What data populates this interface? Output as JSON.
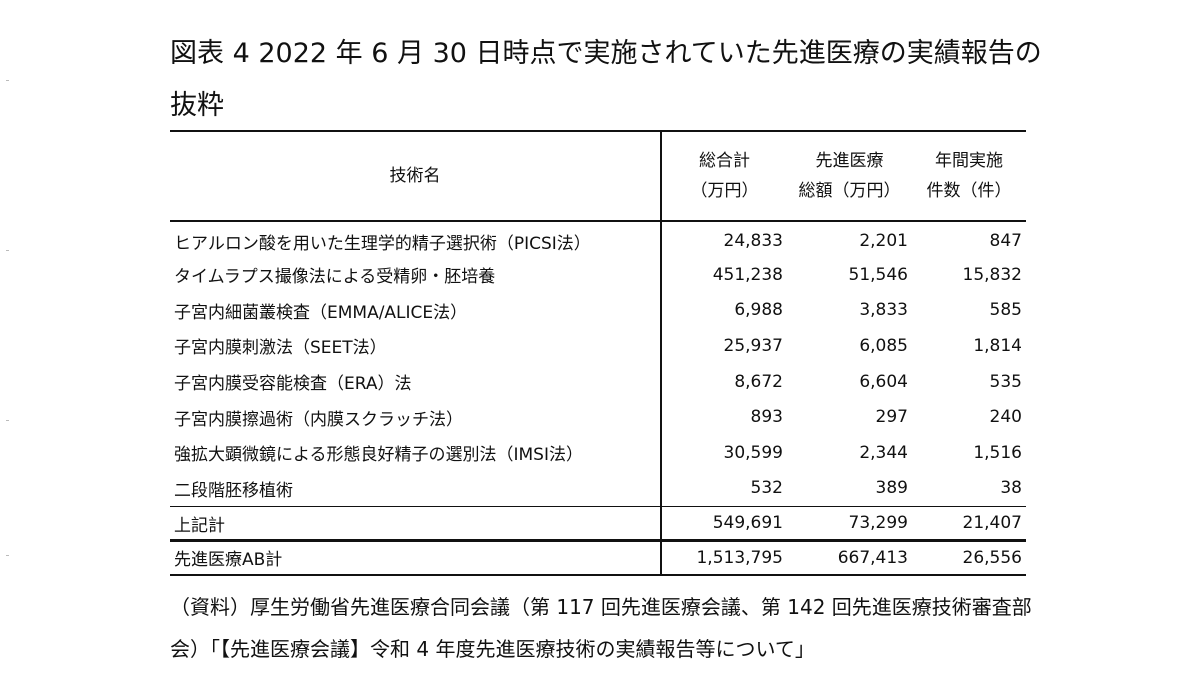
{
  "title": "図表 4 2022 年 6 月 30 日時点で実施されていた先進医療の実績報告の抜粋",
  "table": {
    "headers": {
      "name": "技術名",
      "total_line1": "総合計",
      "total_line2": "（万円）",
      "adv_line1": "先進医療",
      "adv_line2": "総額（万円）",
      "cases_line1": "年間実施",
      "cases_line2": "件数（件）"
    },
    "rows": [
      {
        "name": "ヒアルロン酸を用いた生理学的精子選択術（PICSI法）",
        "total": "24,833",
        "advanced": "2,201",
        "cases": "847"
      },
      {
        "name": "タイムラプス撮像法による受精卵・胚培養",
        "total": "451,238",
        "advanced": "51,546",
        "cases": "15,832"
      },
      {
        "name": "子宮内細菌叢検査（EMMA/ALICE法）",
        "total": "6,988",
        "advanced": "3,833",
        "cases": "585"
      },
      {
        "name": "子宮内膜刺激法（SEET法）",
        "total": "25,937",
        "advanced": "6,085",
        "cases": "1,814"
      },
      {
        "name": "子宮内膜受容能検査（ERA）法",
        "total": "8,672",
        "advanced": "6,604",
        "cases": "535"
      },
      {
        "name": "子宮内膜擦過術（内膜スクラッチ法）",
        "total": "893",
        "advanced": "297",
        "cases": "240"
      },
      {
        "name": "強拡大顕微鏡による形態良好精子の選別法（IMSI法）",
        "total": "30,599",
        "advanced": "2,344",
        "cases": "1,516"
      },
      {
        "name": "二段階胚移植術",
        "total": "532",
        "advanced": "389",
        "cases": "38"
      }
    ],
    "subtotal": {
      "name": "上記計",
      "total": "549,691",
      "advanced": "73,299",
      "cases": "21,407"
    },
    "grand_total": {
      "name": "先進医療AB計",
      "total": "1,513,795",
      "advanced": "667,413",
      "cases": "26,556"
    }
  },
  "source": "（資料）厚生労働省先進医療合同会議（第 117 回先進医療会議、第 142 回先進医療技術審査部会）「【先進医療会議】令和 4 年度先進医療技術の実績報告等について」"
}
